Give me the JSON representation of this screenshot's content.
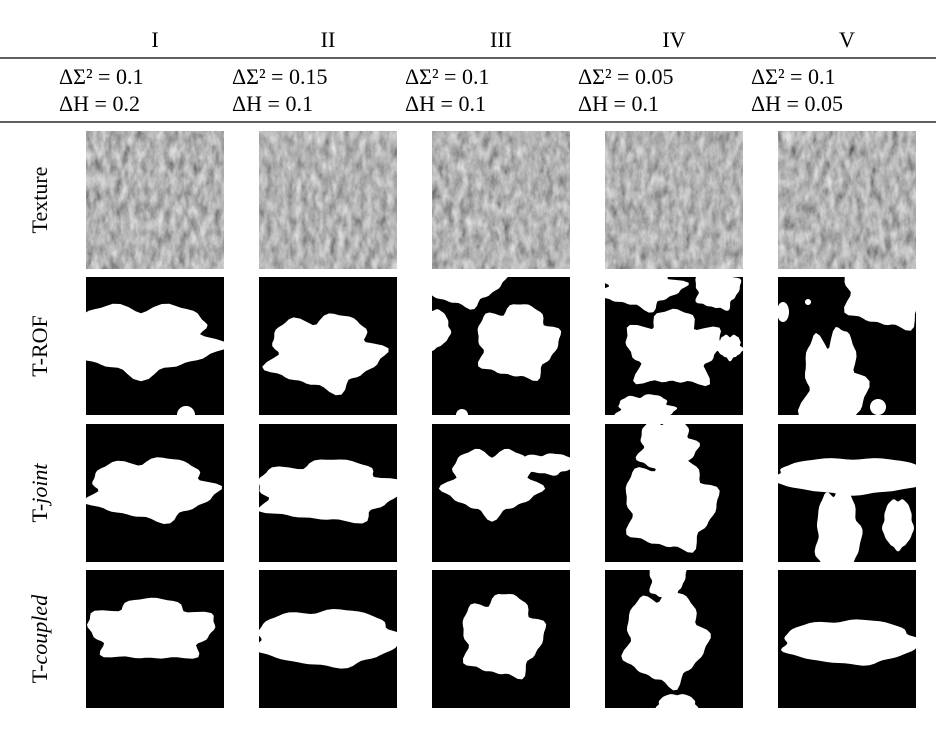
{
  "columns": [
    {
      "numeral": "I",
      "line1": "ΔΣ² = 0.1",
      "line2": "ΔH = 0.2"
    },
    {
      "numeral": "II",
      "line1": "ΔΣ² = 0.15",
      "line2": "ΔH = 0.1"
    },
    {
      "numeral": "III",
      "line1": "ΔΣ² = 0.1",
      "line2": "ΔH = 0.1"
    },
    {
      "numeral": "IV",
      "line1": "ΔΣ² = 0.05",
      "line2": "ΔH = 0.1"
    },
    {
      "numeral": "V",
      "line1": "ΔΣ² = 0.1",
      "line2": "ΔH = 0.05"
    }
  ],
  "rows": [
    {
      "label": "Texture"
    },
    {
      "label": "T-ROF"
    },
    {
      "prefix": "T-",
      "emph": "joint"
    },
    {
      "prefix": "T-",
      "emph": "coupled"
    }
  ]
}
